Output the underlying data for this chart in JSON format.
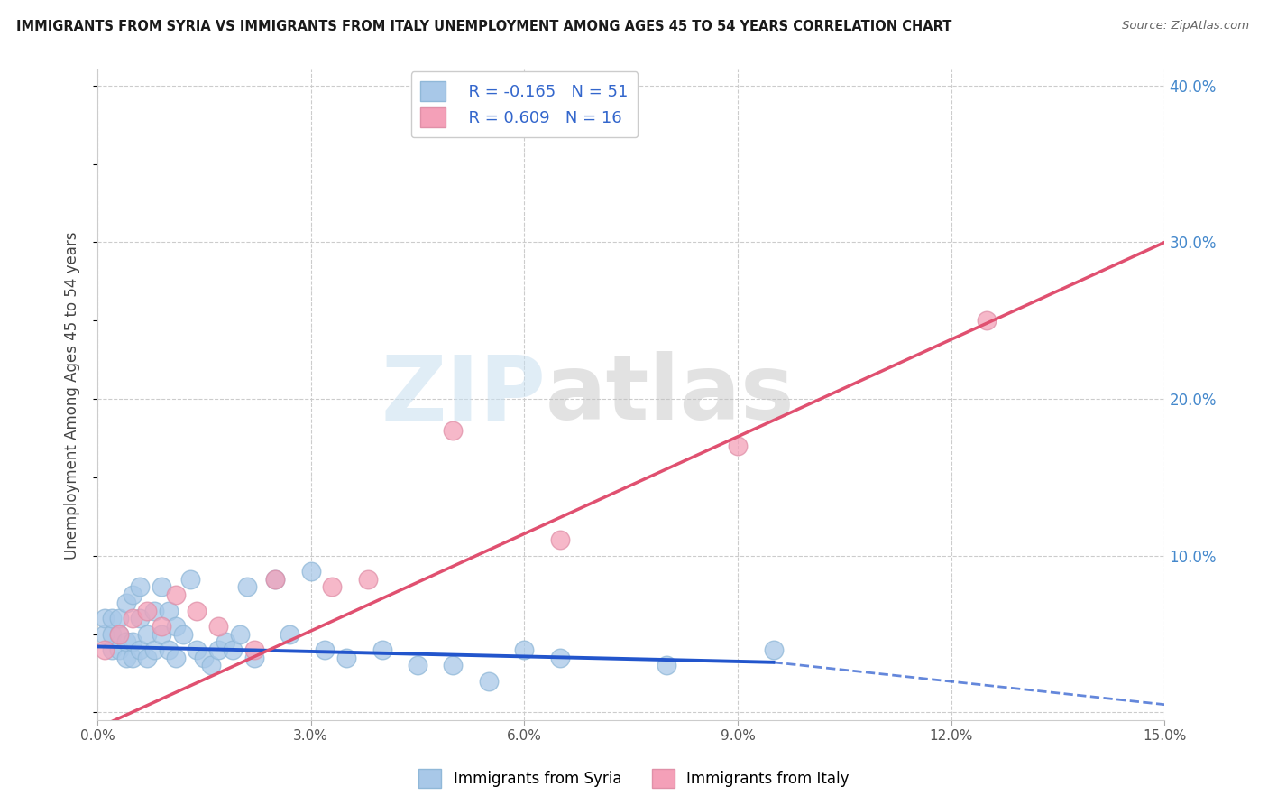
{
  "title": "IMMIGRANTS FROM SYRIA VS IMMIGRANTS FROM ITALY UNEMPLOYMENT AMONG AGES 45 TO 54 YEARS CORRELATION CHART",
  "source": "Source: ZipAtlas.com",
  "ylabel": "Unemployment Among Ages 45 to 54 years",
  "xlim": [
    0,
    0.15
  ],
  "ylim": [
    -0.005,
    0.41
  ],
  "xticks": [
    0.0,
    0.03,
    0.06,
    0.09,
    0.12,
    0.15
  ],
  "yticks": [
    0.0,
    0.1,
    0.2,
    0.3,
    0.4
  ],
  "xtick_labels": [
    "0.0%",
    "3.0%",
    "6.0%",
    "9.0%",
    "12.0%",
    "15.0%"
  ],
  "ytick_labels": [
    "",
    "10.0%",
    "20.0%",
    "30.0%",
    "40.0%"
  ],
  "syria_color": "#a8c8e8",
  "italy_color": "#f4a0b8",
  "syria_line_color": "#2255cc",
  "italy_line_color": "#e05070",
  "syria_R": -0.165,
  "syria_N": 51,
  "italy_R": 0.609,
  "italy_N": 16,
  "watermark_zip": "ZIP",
  "watermark_atlas": "atlas",
  "background_color": "#ffffff",
  "syria_x": [
    0.001,
    0.001,
    0.002,
    0.002,
    0.002,
    0.003,
    0.003,
    0.003,
    0.004,
    0.004,
    0.004,
    0.005,
    0.005,
    0.005,
    0.006,
    0.006,
    0.006,
    0.007,
    0.007,
    0.008,
    0.008,
    0.009,
    0.009,
    0.01,
    0.01,
    0.011,
    0.011,
    0.012,
    0.013,
    0.014,
    0.015,
    0.016,
    0.017,
    0.018,
    0.019,
    0.02,
    0.021,
    0.022,
    0.025,
    0.027,
    0.03,
    0.032,
    0.035,
    0.04,
    0.045,
    0.05,
    0.055,
    0.06,
    0.065,
    0.08,
    0.095
  ],
  "syria_y": [
    0.05,
    0.06,
    0.04,
    0.05,
    0.06,
    0.04,
    0.05,
    0.06,
    0.035,
    0.045,
    0.07,
    0.035,
    0.045,
    0.075,
    0.04,
    0.06,
    0.08,
    0.035,
    0.05,
    0.04,
    0.065,
    0.05,
    0.08,
    0.04,
    0.065,
    0.035,
    0.055,
    0.05,
    0.085,
    0.04,
    0.035,
    0.03,
    0.04,
    0.045,
    0.04,
    0.05,
    0.08,
    0.035,
    0.085,
    0.05,
    0.09,
    0.04,
    0.035,
    0.04,
    0.03,
    0.03,
    0.02,
    0.04,
    0.035,
    0.03,
    0.04
  ],
  "italy_x": [
    0.001,
    0.003,
    0.005,
    0.007,
    0.009,
    0.011,
    0.014,
    0.017,
    0.022,
    0.025,
    0.033,
    0.038,
    0.05,
    0.065,
    0.09,
    0.125
  ],
  "italy_y": [
    0.04,
    0.05,
    0.06,
    0.065,
    0.055,
    0.075,
    0.065,
    0.055,
    0.04,
    0.085,
    0.08,
    0.085,
    0.18,
    0.11,
    0.17,
    0.25
  ],
  "syria_line_x0": 0.0,
  "syria_line_y0": 0.042,
  "syria_line_x1": 0.095,
  "syria_line_y1": 0.032,
  "syria_line_xd": 0.15,
  "syria_line_yd": 0.005,
  "italy_line_x0": 0.0,
  "italy_line_y0": -0.01,
  "italy_line_x1": 0.15,
  "italy_line_y1": 0.3
}
